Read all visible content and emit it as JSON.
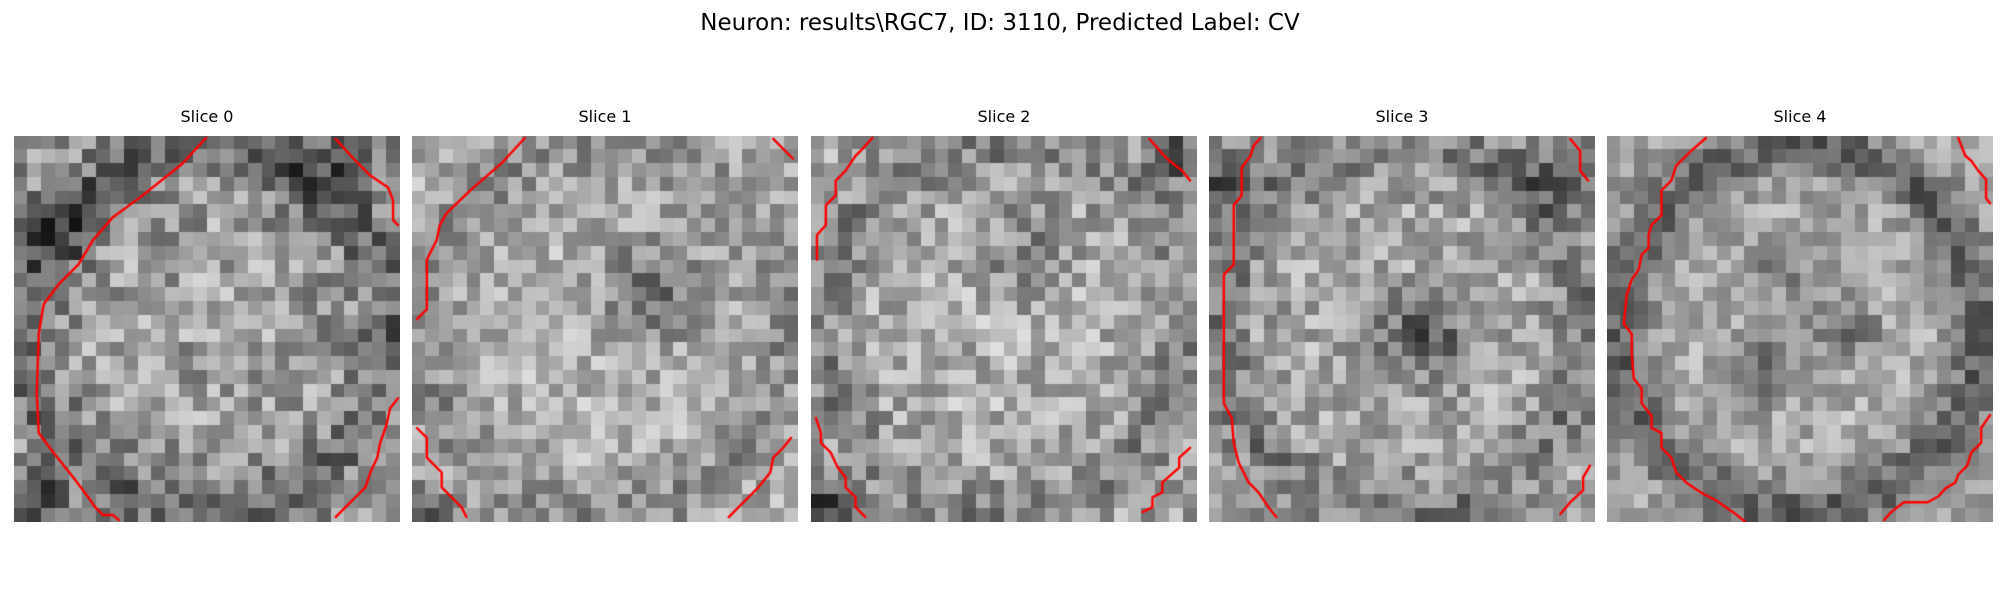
{
  "figure": {
    "title": "Neuron: results\\RGC7, ID: 3110, Predicted Label: CV",
    "contour_color": "#ff0000",
    "colormap": "gray"
  },
  "panels": [
    {
      "title": "Slice 0"
    },
    {
      "title": "Slice 1"
    },
    {
      "title": "Slice 2"
    },
    {
      "title": "Slice 3"
    },
    {
      "title": "Slice 4"
    }
  ]
}
